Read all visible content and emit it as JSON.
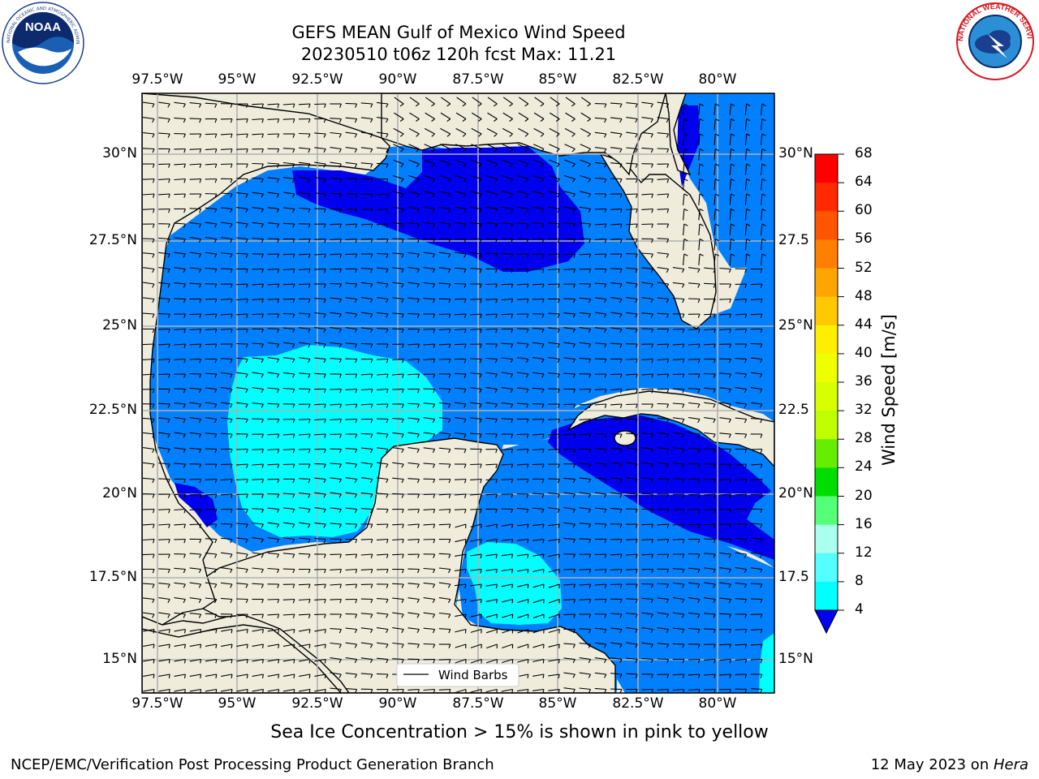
{
  "title": {
    "line1": "GEFS MEAN Gulf of Mexico Wind Speed",
    "line2": "20230510 t06z 120h fcst   Max: 11.21"
  },
  "logos": {
    "left_text": "NOAA",
    "left_ring": "NATIONAL OCEANIC AND ATMOSPHERIC ADMINISTRATION · U.S. DEPARTMENT OF COMMERCE",
    "right_ring": "NATIONAL WEATHER SERVICE"
  },
  "axes": {
    "lon_labels": [
      "97.5°W",
      "95°W",
      "92.5°W",
      "90°W",
      "87.5°W",
      "85°W",
      "82.5°W",
      "80°W"
    ],
    "lat_labels_left": [
      "30°N",
      "27.5°N",
      "25°N",
      "22.5°N",
      "20°N",
      "17.5°N",
      "15°N"
    ],
    "lat_labels_right": [
      "30°N",
      "27.5",
      "25°N",
      "22.5",
      "20°N",
      "17.5",
      "15°N"
    ]
  },
  "legend": {
    "label": "Wind Barbs"
  },
  "colorbar": {
    "label": "Wind Speed [m/s]",
    "ticks": [
      "68",
      "64",
      "60",
      "56",
      "52",
      "48",
      "44",
      "40",
      "36",
      "32",
      "28",
      "24",
      "20",
      "16",
      "12",
      "8",
      "4"
    ],
    "colors": [
      "#ff0000",
      "#ff2a00",
      "#ff5500",
      "#ff7f00",
      "#ffa500",
      "#ffc800",
      "#ffee00",
      "#f0ff00",
      "#d8ff00",
      "#c0ff00",
      "#66ee00",
      "#00dd00",
      "#55ff77",
      "#aaffee",
      "#55ffff",
      "#00ffff",
      "#0088ff",
      "#0000ee"
    ]
  },
  "bottom_caption": "Sea Ice Concentration > 15% is shown in pink to yellow",
  "footer": {
    "left": "NCEP/EMC/Verification Post Processing Product Generation Branch",
    "right_date": "12 May 2023 on ",
    "right_machine": "Hera"
  },
  "map_colors": {
    "land": "#efecdc",
    "wind_4_8": "#0080ff",
    "wind_8_12": "#00ffff",
    "wind_lt_4": "#0000ee",
    "grid": "#b0b0b0",
    "coast": "#000000"
  }
}
